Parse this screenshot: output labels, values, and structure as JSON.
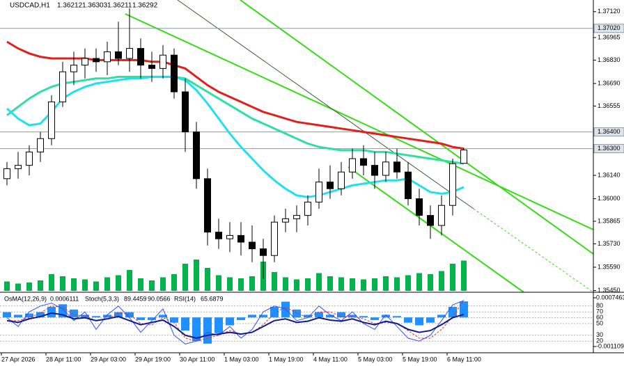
{
  "chart_data": [
    {
      "type": "candlestick",
      "title": "USDCAD,H1",
      "categories": [
        "27 Apr 2026",
        null,
        null,
        null,
        "28 Apr 11:00",
        null,
        null,
        null,
        "29 Apr 03:00",
        null,
        null,
        null,
        "29 Apr 19:00",
        null,
        null,
        null,
        "30 Apr 11:00",
        null,
        null,
        null,
        "1 May 03:00",
        null,
        null,
        null,
        "1 May 19:00",
        null,
        null,
        null,
        "4 May 11:00",
        null,
        null,
        null,
        "5 May 03:00",
        null,
        null,
        null,
        "5 May 19:00",
        null,
        null,
        null,
        "6 May 11:00",
        null
      ],
      "open": [
        1.3612,
        1.3618,
        1.362,
        1.3628,
        1.3636,
        1.3658,
        1.3676,
        1.368,
        1.3684,
        1.3682,
        1.3688,
        1.3684,
        1.369,
        1.368,
        1.3678,
        1.3686,
        1.3664,
        1.364,
        1.3612,
        1.358,
        1.3576,
        1.3578,
        1.3574,
        1.357,
        1.3566,
        1.3586,
        1.3588,
        1.359,
        1.3598,
        1.361,
        1.3606,
        1.3616,
        1.3624,
        1.362,
        1.3614,
        1.3622,
        1.3616,
        1.36,
        1.359,
        1.3584,
        1.3596,
        1.36212
      ],
      "high": [
        1.3622,
        1.3628,
        1.3632,
        1.364,
        1.3662,
        1.3682,
        1.3688,
        1.369,
        1.369,
        1.3694,
        1.3706,
        1.3714,
        1.3696,
        1.3688,
        1.3692,
        1.369,
        1.3672,
        1.3646,
        1.3618,
        1.3588,
        1.3586,
        1.3586,
        1.3584,
        1.3576,
        1.359,
        1.3594,
        1.3596,
        1.3602,
        1.3618,
        1.362,
        1.3622,
        1.363,
        1.3632,
        1.3628,
        1.3628,
        1.363,
        1.3622,
        1.3606,
        1.3596,
        1.3602,
        1.3624,
        1.36303
      ],
      "low": [
        1.3608,
        1.3612,
        1.3614,
        1.3622,
        1.3632,
        1.3655,
        1.3668,
        1.3672,
        1.3676,
        1.3674,
        1.368,
        1.3676,
        1.3672,
        1.367,
        1.3672,
        1.366,
        1.3628,
        1.3606,
        1.3572,
        1.357,
        1.3568,
        1.3566,
        1.3562,
        1.3552,
        1.3562,
        1.358,
        1.358,
        1.3584,
        1.3594,
        1.36,
        1.3602,
        1.3612,
        1.3614,
        1.3606,
        1.361,
        1.3612,
        1.3596,
        1.3584,
        1.3576,
        1.3578,
        1.359,
        1.36211
      ],
      "close": [
        1.3618,
        1.362,
        1.3628,
        1.3636,
        1.3658,
        1.3676,
        1.368,
        1.3684,
        1.3682,
        1.3688,
        1.3684,
        1.369,
        1.368,
        1.3678,
        1.3686,
        1.3664,
        1.364,
        1.3612,
        1.358,
        1.3576,
        1.3578,
        1.3574,
        1.357,
        1.3566,
        1.3586,
        1.3588,
        1.359,
        1.3598,
        1.361,
        1.3606,
        1.3616,
        1.3624,
        1.362,
        1.3614,
        1.3622,
        1.3616,
        1.36,
        1.359,
        1.3584,
        1.3596,
        1.3621,
        1.36292
      ],
      "series": [
        {
          "color": "#e0201b",
          "values": [
            1.3694,
            1.369,
            1.3687,
            1.3685,
            1.3684,
            1.3684,
            1.3684,
            1.3684,
            1.3683,
            1.3683,
            1.3683,
            1.3683,
            1.3683,
            1.3682,
            1.3682,
            1.368,
            1.3678,
            1.3673,
            1.3668,
            1.3664,
            1.3661,
            1.3658,
            1.3655,
            1.3652,
            1.365,
            1.3648,
            1.3646,
            1.3645,
            1.3644,
            1.3643,
            1.3642,
            1.3641,
            1.364,
            1.3639,
            1.3638,
            1.3637,
            1.3636,
            1.3635,
            1.3634,
            1.3633,
            1.3631,
            1.363
          ]
        },
        {
          "color": "#2ee0a0",
          "values": [
            1.365,
            1.3655,
            1.366,
            1.3664,
            1.3667,
            1.3669,
            1.367,
            1.3671,
            1.3672,
            1.3672,
            1.3673,
            1.3673,
            1.3673,
            1.3673,
            1.3673,
            1.3673,
            1.3672,
            1.3668,
            1.3664,
            1.366,
            1.3656,
            1.3652,
            1.3648,
            1.3645,
            1.3642,
            1.3639,
            1.3636,
            1.3633,
            1.3631,
            1.363,
            1.3629,
            1.3629,
            1.3629,
            1.3628,
            1.3628,
            1.3627,
            1.3626,
            1.3625,
            1.3624,
            1.3623,
            1.3622,
            1.3621
          ]
        },
        {
          "color": "#20e0f0",
          "values": [
            1.3654,
            1.3648,
            1.3644,
            1.3645,
            1.3652,
            1.366,
            1.3664,
            1.3667,
            1.3669,
            1.367,
            1.3671,
            1.3672,
            1.3672,
            1.3673,
            1.3673,
            1.3673,
            1.3671,
            1.3665,
            1.3657,
            1.3648,
            1.3639,
            1.3631,
            1.3624,
            1.3617,
            1.3611,
            1.3606,
            1.3602,
            1.3601,
            1.3602,
            1.3604,
            1.3606,
            1.3608,
            1.3609,
            1.361,
            1.3611,
            1.3611,
            1.3612,
            1.3608,
            1.3604,
            1.3603,
            1.3604,
            1.3607
          ]
        }
      ],
      "volume": {
        "color": "#00b34a",
        "values": [
          900,
          700,
          800,
          1000,
          1600,
          1400,
          1200,
          1100,
          900,
          1300,
          1500,
          2000,
          1200,
          1000,
          1300,
          1600,
          2600,
          3000,
          2200,
          1500,
          1300,
          1200,
          1400,
          2800,
          1800,
          1300,
          1100,
          1200,
          1700,
          1400,
          1300,
          1200,
          1100,
          1200,
          1400,
          1300,
          1500,
          1700,
          1600,
          1900,
          2600,
          2900
        ]
      },
      "ylim": [
        1.3544,
        1.3719
      ],
      "yticks": [
        {
          "value": 1.3712,
          "label": "1.37120"
        },
        1.36965,
        {
          "value": 1.3683,
          "label": "1.36830"
        },
        {
          "value": 1.3669,
          "label": "1.36690"
        },
        1.36555,
        {
          "value": 1.3614,
          "label": "1.36140"
        },
        {
          "value": 1.36,
          "label": "1.36000"
        },
        1.35865,
        {
          "value": 1.3573,
          "label": "1.35730"
        },
        {
          "value": 1.3559,
          "label": "1.35590"
        },
        {
          "value": 1.3545,
          "label": "1.35450"
        }
      ],
      "levels": [
        {
          "value": 1.3702,
          "label": "1.37020"
        },
        {
          "value": 1.364,
          "label": "1.36400"
        },
        {
          "value": 1.363,
          "label": "1.36300"
        }
      ]
    },
    {
      "type": "oscillator",
      "osma": {
        "title": "OsMA(12,26,9)",
        "color": "#1e90ff",
        "values": [
          0.0002,
          0.0001,
          0.00015,
          0.0002,
          0.0004,
          0.0005,
          0.0003,
          0.0001,
          5e-05,
          0.0001,
          0.0002,
          0.0002,
          -0.0001,
          -0.0001,
          0.0001,
          -0.0002,
          -0.0005,
          -0.0009,
          -0.001,
          -0.0006,
          -0.0003,
          -0.0001,
          0.0001,
          0.0001,
          0.0004,
          0.0006,
          0.0003,
          0.0001,
          0.0002,
          0.0001,
          0.0002,
          0.0001,
          5e-05,
          -0.0001,
          0.0001,
          5e-05,
          -0.0002,
          -0.0003,
          -0.0002,
          0.0001,
          0.0004,
          0.0006111
        ],
        "ylim": [
          -0.001109,
          0.0007463
        ],
        "yticks": [
          0.0007463,
          -0.001109
        ]
      },
      "stoch": {
        "title": "Stoch(5,3,3)",
        "color": "#3050ff",
        "signal_color": "#e03030",
        "values": [
          60,
          45,
          70,
          80,
          85,
          75,
          55,
          70,
          40,
          65,
          80,
          60,
          35,
          55,
          75,
          30,
          15,
          20,
          35,
          30,
          45,
          25,
          40,
          70,
          80,
          75,
          55,
          60,
          80,
          65,
          55,
          70,
          50,
          40,
          65,
          45,
          25,
          20,
          30,
          55,
          82,
          89.4459
        ],
        "signal": [
          55,
          55,
          60,
          68,
          80,
          78,
          65,
          63,
          55,
          58,
          68,
          66,
          50,
          48,
          60,
          52,
          25,
          20,
          25,
          30,
          38,
          32,
          35,
          48,
          68,
          78,
          68,
          60,
          70,
          70,
          62,
          62,
          58,
          50,
          52,
          50,
          38,
          25,
          25,
          40,
          62,
          90.0566
        ]
      },
      "rsi": {
        "title": "RSI(14)",
        "color": "#101c8c",
        "values": [
          55,
          52,
          58,
          62,
          68,
          65,
          58,
          60,
          55,
          58,
          62,
          55,
          48,
          52,
          56,
          45,
          30,
          25,
          30,
          32,
          35,
          32,
          35,
          45,
          55,
          58,
          52,
          54,
          60,
          56,
          54,
          58,
          52,
          48,
          54,
          50,
          40,
          35,
          38,
          48,
          60,
          65.6879
        ]
      },
      "ylim": [
        0,
        100
      ],
      "yticks": [
        80,
        70,
        60,
        50,
        30,
        20
      ]
    }
  ]
}
